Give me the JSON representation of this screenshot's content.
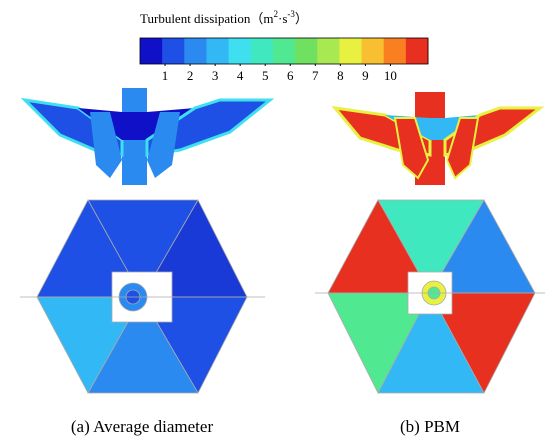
{
  "colorbar": {
    "title": "Turbulent dissipation",
    "unit_parts": [
      "（m",
      "2",
      "·s",
      "-3",
      "）"
    ],
    "colors": [
      "#1010c8",
      "#1e50e6",
      "#2a8af0",
      "#32b8f5",
      "#3ee0f0",
      "#40e8c0",
      "#50e890",
      "#70e060",
      "#a8e850",
      "#e8f040",
      "#f8c030",
      "#f88020",
      "#e83020"
    ],
    "range": [
      0,
      11.5
    ],
    "ticks": [
      1,
      2,
      3,
      4,
      5,
      6,
      7,
      8,
      9,
      10
    ]
  },
  "panels": [
    {
      "caption": "(a) Average diameter"
    },
    {
      "caption": "(b) PBM"
    }
  ]
}
